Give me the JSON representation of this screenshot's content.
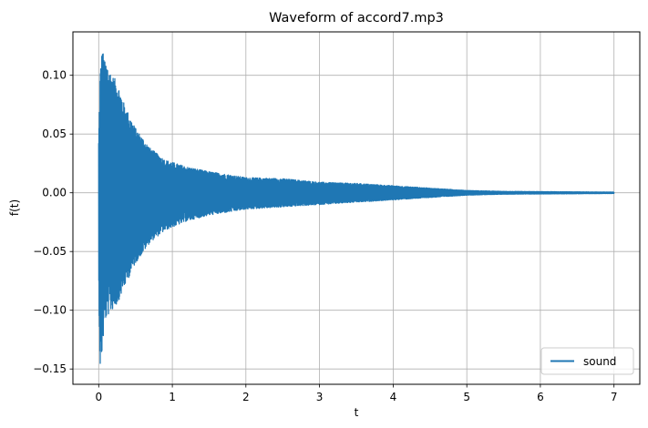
{
  "chart_data": {
    "type": "line",
    "title": "Waveform of accord7.mp3",
    "xlabel": "t",
    "ylabel": "f(t)",
    "xlim": [
      -0.35,
      7.35
    ],
    "ylim": [
      -0.163,
      0.137
    ],
    "xticks": [
      0,
      1,
      2,
      3,
      4,
      5,
      6,
      7
    ],
    "xtick_labels": [
      "0",
      "1",
      "2",
      "3",
      "4",
      "5",
      "6",
      "7"
    ],
    "yticks": [
      -0.15,
      -0.1,
      -0.05,
      0.0,
      0.05,
      0.1
    ],
    "ytick_labels": [
      "−0.15",
      "−0.10",
      "−0.05",
      "0.00",
      "0.05",
      "0.10"
    ],
    "grid": true,
    "legend": {
      "location": "bottom-right",
      "entries": [
        "sound"
      ]
    },
    "series": [
      {
        "name": "sound",
        "color": "#1f77b4",
        "x_range": [
          0,
          7
        ],
        "envelope_t": [
          0.0,
          0.02,
          0.05,
          0.08,
          0.12,
          0.18,
          0.25,
          0.35,
          0.5,
          0.7,
          0.9,
          1.2,
          1.5,
          2.0,
          2.5,
          3.0,
          3.5,
          4.0,
          4.5,
          5.0,
          5.5,
          6.0,
          6.5,
          7.0
        ],
        "envelope_max": [
          0.045,
          0.104,
          0.124,
          0.112,
          0.11,
          0.1,
          0.095,
          0.075,
          0.055,
          0.038,
          0.028,
          0.022,
          0.018,
          0.013,
          0.012,
          0.009,
          0.008,
          0.006,
          0.004,
          0.002,
          0.0012,
          0.001,
          0.0008,
          0.0006
        ],
        "envelope_min": [
          -0.08,
          -0.15,
          -0.135,
          -0.11,
          -0.105,
          -0.1,
          -0.095,
          -0.08,
          -0.06,
          -0.042,
          -0.032,
          -0.024,
          -0.019,
          -0.014,
          -0.012,
          -0.01,
          -0.008,
          -0.006,
          -0.004,
          -0.002,
          -0.0012,
          -0.001,
          -0.0008,
          -0.0006
        ]
      }
    ]
  }
}
